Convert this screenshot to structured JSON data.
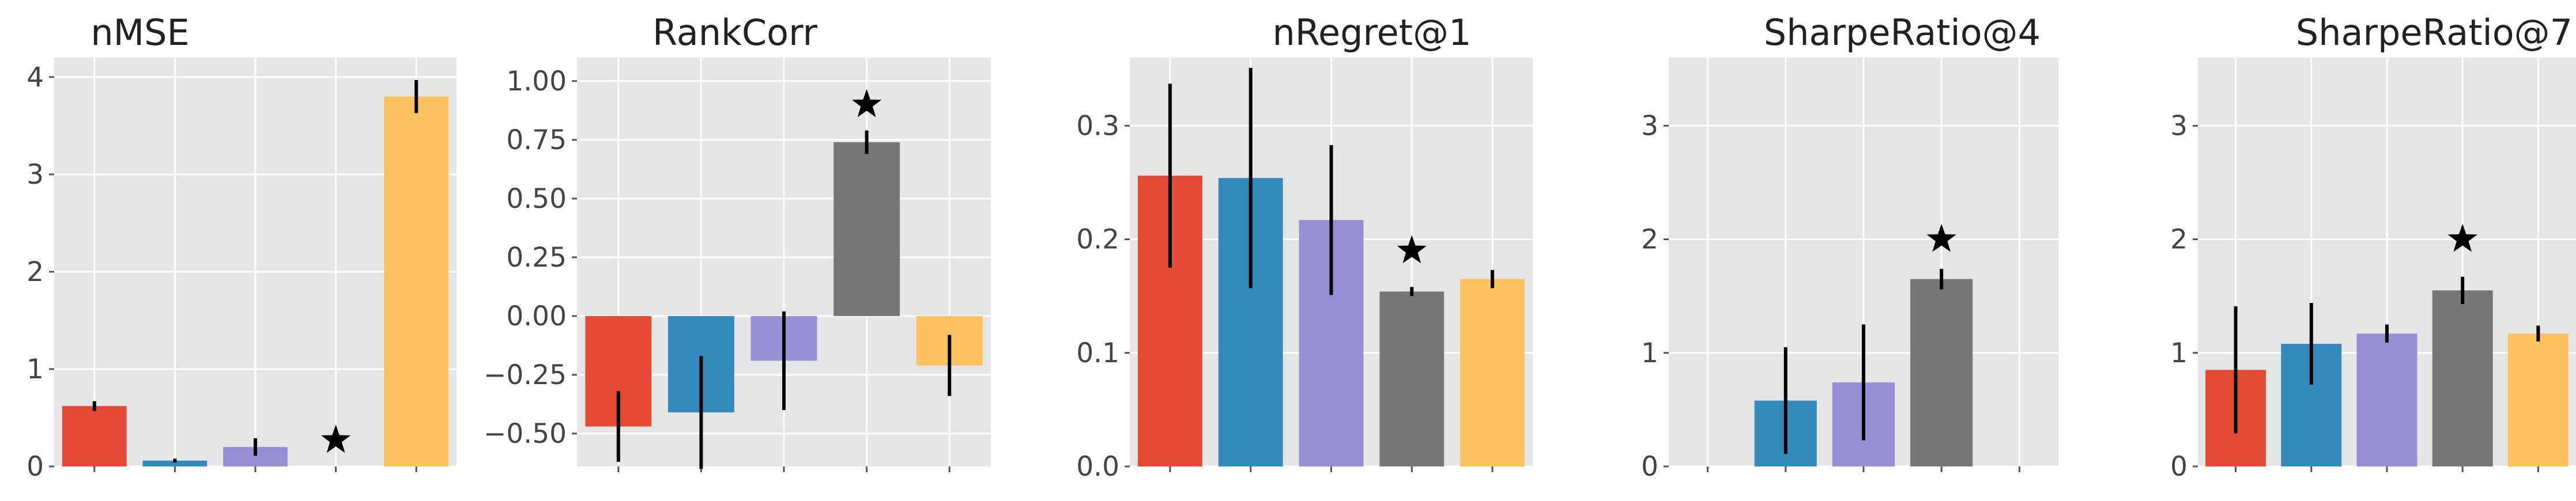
{
  "colors": {
    "background": "#E5E5E5",
    "grid": "#FFFFFF",
    "tick": "#555555",
    "error_bar": "#000000",
    "marker": "#000000",
    "series": [
      "#E24A33",
      "#348ABD",
      "#988ED5",
      "#777777",
      "#FBC15E"
    ]
  },
  "chart_data": [
    {
      "type": "bar",
      "title": "nMSE",
      "values": [
        0.62,
        0.06,
        0.2,
        null,
        3.8
      ],
      "errors": [
        0.05,
        0.02,
        0.09,
        null,
        0.17
      ],
      "star": {
        "index": 3,
        "value": 0.27
      },
      "ylim": [
        0,
        4.2
      ],
      "yticks": [
        0,
        1,
        2,
        3,
        4
      ],
      "ytick_labels": [
        "0",
        "1",
        "2",
        "3",
        "4"
      ],
      "grid": true
    },
    {
      "type": "bar",
      "title": "RankCorr",
      "values": [
        -0.47,
        -0.41,
        -0.19,
        0.74,
        -0.21
      ],
      "errors": [
        0.15,
        0.24,
        0.21,
        0.05,
        0.13
      ],
      "star": {
        "index": 3,
        "value": 0.9
      },
      "ylim": [
        -0.64,
        1.1
      ],
      "yticks": [
        -0.5,
        -0.25,
        0.0,
        0.25,
        0.5,
        0.75,
        1.0
      ],
      "ytick_labels": [
        "−0.50",
        "−0.25",
        "0.00",
        "0.25",
        "0.50",
        "0.75",
        "1.00"
      ],
      "grid": true
    },
    {
      "type": "bar",
      "title": "nRegret@1",
      "values": [
        0.256,
        0.254,
        0.217,
        0.154,
        0.165
      ],
      "errors": [
        0.081,
        0.097,
        0.066,
        0.004,
        0.008
      ],
      "star": {
        "index": 3,
        "value": 0.19
      },
      "ylim": [
        0,
        0.36
      ],
      "yticks": [
        0.0,
        0.1,
        0.2,
        0.3
      ],
      "ytick_labels": [
        "0.0",
        "0.1",
        "0.2",
        "0.3"
      ],
      "grid": true
    },
    {
      "type": "bar",
      "title": "SharpeRatio@4",
      "values": [
        null,
        0.58,
        0.74,
        1.65,
        null
      ],
      "errors": [
        null,
        0.47,
        0.51,
        0.09,
        null
      ],
      "star": {
        "index": 3,
        "value": 2.0
      },
      "ylim": [
        0,
        3.6
      ],
      "yticks": [
        0,
        1,
        2,
        3
      ],
      "ytick_labels": [
        "0",
        "1",
        "2",
        "3"
      ],
      "grid": true
    },
    {
      "type": "bar",
      "title": "SharpeRatio@7",
      "values": [
        0.85,
        1.08,
        1.17,
        1.55,
        1.17
      ],
      "errors": [
        0.56,
        0.36,
        0.08,
        0.12,
        0.07
      ],
      "star": {
        "index": 3,
        "value": 2.0
      },
      "ylim": [
        0,
        3.6
      ],
      "yticks": [
        0,
        1,
        2,
        3
      ],
      "ytick_labels": [
        "0",
        "1",
        "2",
        "3"
      ],
      "grid": true
    }
  ]
}
